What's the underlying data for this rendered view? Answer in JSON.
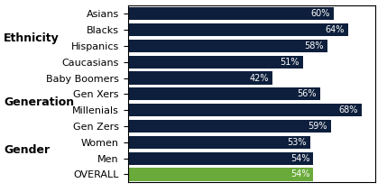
{
  "chart_data": {
    "type": "bar",
    "orientation": "horizontal",
    "categories": [
      "Asians",
      "Blacks",
      "Hispanics",
      "Caucasians",
      "Baby Boomers",
      "Gen Xers",
      "Millenials",
      "Gen Zers",
      "Women",
      "Men",
      "OVERALL"
    ],
    "values": [
      60,
      64,
      58,
      51,
      42,
      56,
      68,
      59,
      53,
      54,
      54
    ],
    "value_labels": [
      "60%",
      "64%",
      "58%",
      "51%",
      "42%",
      "56%",
      "68%",
      "59%",
      "53%",
      "54%",
      "54%"
    ],
    "data_labels": true,
    "colors": [
      "#0d1f3c",
      "#0d1f3c",
      "#0d1f3c",
      "#0d1f3c",
      "#0d1f3c",
      "#0d1f3c",
      "#0d1f3c",
      "#0d1f3c",
      "#0d1f3c",
      "#0d1f3c",
      "#6aaa3a"
    ],
    "xlim": [
      0,
      72
    ],
    "xticks": [],
    "tick_labels": "y",
    "groups": [
      {
        "name": "Ethnicity",
        "categories": [
          "Asians",
          "Blacks",
          "Hispanics",
          "Caucasians"
        ]
      },
      {
        "name": "Generation",
        "categories": [
          "Baby Boomers",
          "Gen Xers",
          "Millenials",
          "Gen Zers"
        ]
      },
      {
        "name": "Gender",
        "categories": [
          "Women",
          "Men"
        ]
      }
    ]
  }
}
